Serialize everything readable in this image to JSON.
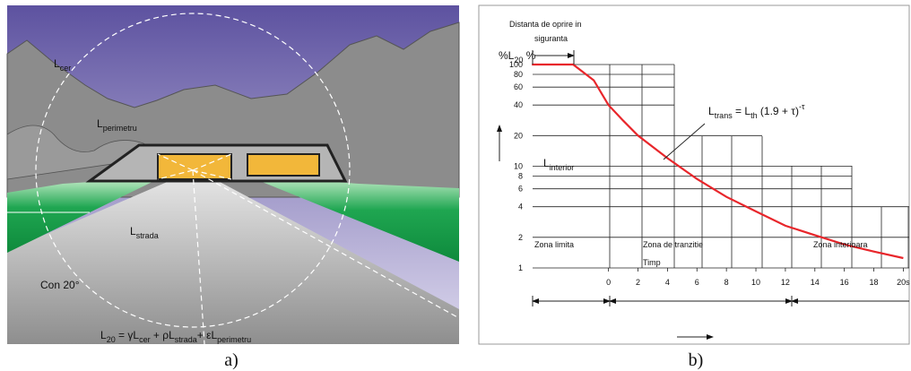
{
  "illustration": {
    "sky_label": [
      "L",
      "cer"
    ],
    "perimeter_label": [
      "L",
      "perimetru"
    ],
    "road_label": [
      "L",
      "strada"
    ],
    "cone_label": "Con 20°",
    "formula": [
      "L",
      "20",
      " = γL",
      "cer",
      " + ρL",
      "strada",
      "+ εL",
      "perimetru"
    ],
    "caption": "a)"
  },
  "chart_data": {
    "type": "line",
    "caption": "b)",
    "stop_distance_label": [
      "Distanta de oprire in",
      "siguranta"
    ],
    "y_label": [
      "%L",
      "20",
      " %"
    ],
    "equation": [
      "L",
      "trans",
      " = L",
      "th",
      " (1.9 + τ)",
      "-τ"
    ],
    "interior_label": [
      "L",
      "interior"
    ],
    "zones": [
      "Zona limita",
      "Zona de tranzitie",
      "Zona interioara"
    ],
    "time_label": "Timp",
    "x": [
      -5.2,
      -2.4,
      -1,
      0,
      1,
      2,
      4,
      6,
      8,
      10,
      12,
      14,
      16,
      18,
      20
    ],
    "values": [
      100,
      100,
      70,
      40,
      28,
      20,
      12,
      7.5,
      5,
      3.6,
      2.6,
      2.1,
      1.7,
      1.45,
      1.25
    ],
    "color": "#e8262b",
    "xlim": [
      -6,
      20.4
    ],
    "xticks": [
      0,
      2,
      4,
      6,
      8,
      10,
      12,
      14,
      16,
      18,
      {
        "value": 20,
        "label": "20s"
      }
    ],
    "ylim": [
      1,
      100
    ],
    "yticks": [
      1,
      2,
      4,
      6,
      8,
      10,
      20,
      40,
      60,
      80,
      100
    ],
    "log_y": true,
    "grid": true
  }
}
